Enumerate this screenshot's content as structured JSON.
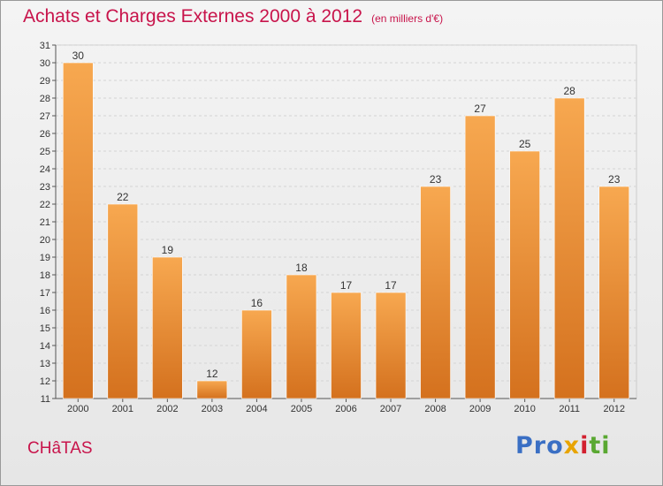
{
  "title": "Achats et Charges Externes 2000 à 2012",
  "subtitle": "(en milliers d'€)",
  "commune": "CHâTAS",
  "logo": {
    "p1": "Pro",
    "p2": "x",
    "p3": "i",
    "p4": "ti",
    "colors": [
      "#3a6fc4",
      "#e8a400",
      "#d2202f",
      "#5aa832"
    ]
  },
  "chart_data": {
    "type": "bar",
    "categories": [
      "2000",
      "2001",
      "2002",
      "2003",
      "2004",
      "2005",
      "2006",
      "2007",
      "2008",
      "2009",
      "2010",
      "2011",
      "2012"
    ],
    "values": [
      30,
      22,
      19,
      12,
      16,
      18,
      17,
      17,
      23,
      27,
      25,
      28,
      23
    ],
    "ylim": [
      11,
      31
    ],
    "yticks": [
      11,
      12,
      13,
      14,
      15,
      16,
      17,
      18,
      19,
      20,
      21,
      22,
      23,
      24,
      25,
      26,
      27,
      28,
      29,
      30,
      31
    ],
    "grid": true,
    "bar_color_top": "#f7a850",
    "bar_color_bottom": "#d4711e",
    "text_color": "#333333",
    "accent": "#c8144b"
  }
}
